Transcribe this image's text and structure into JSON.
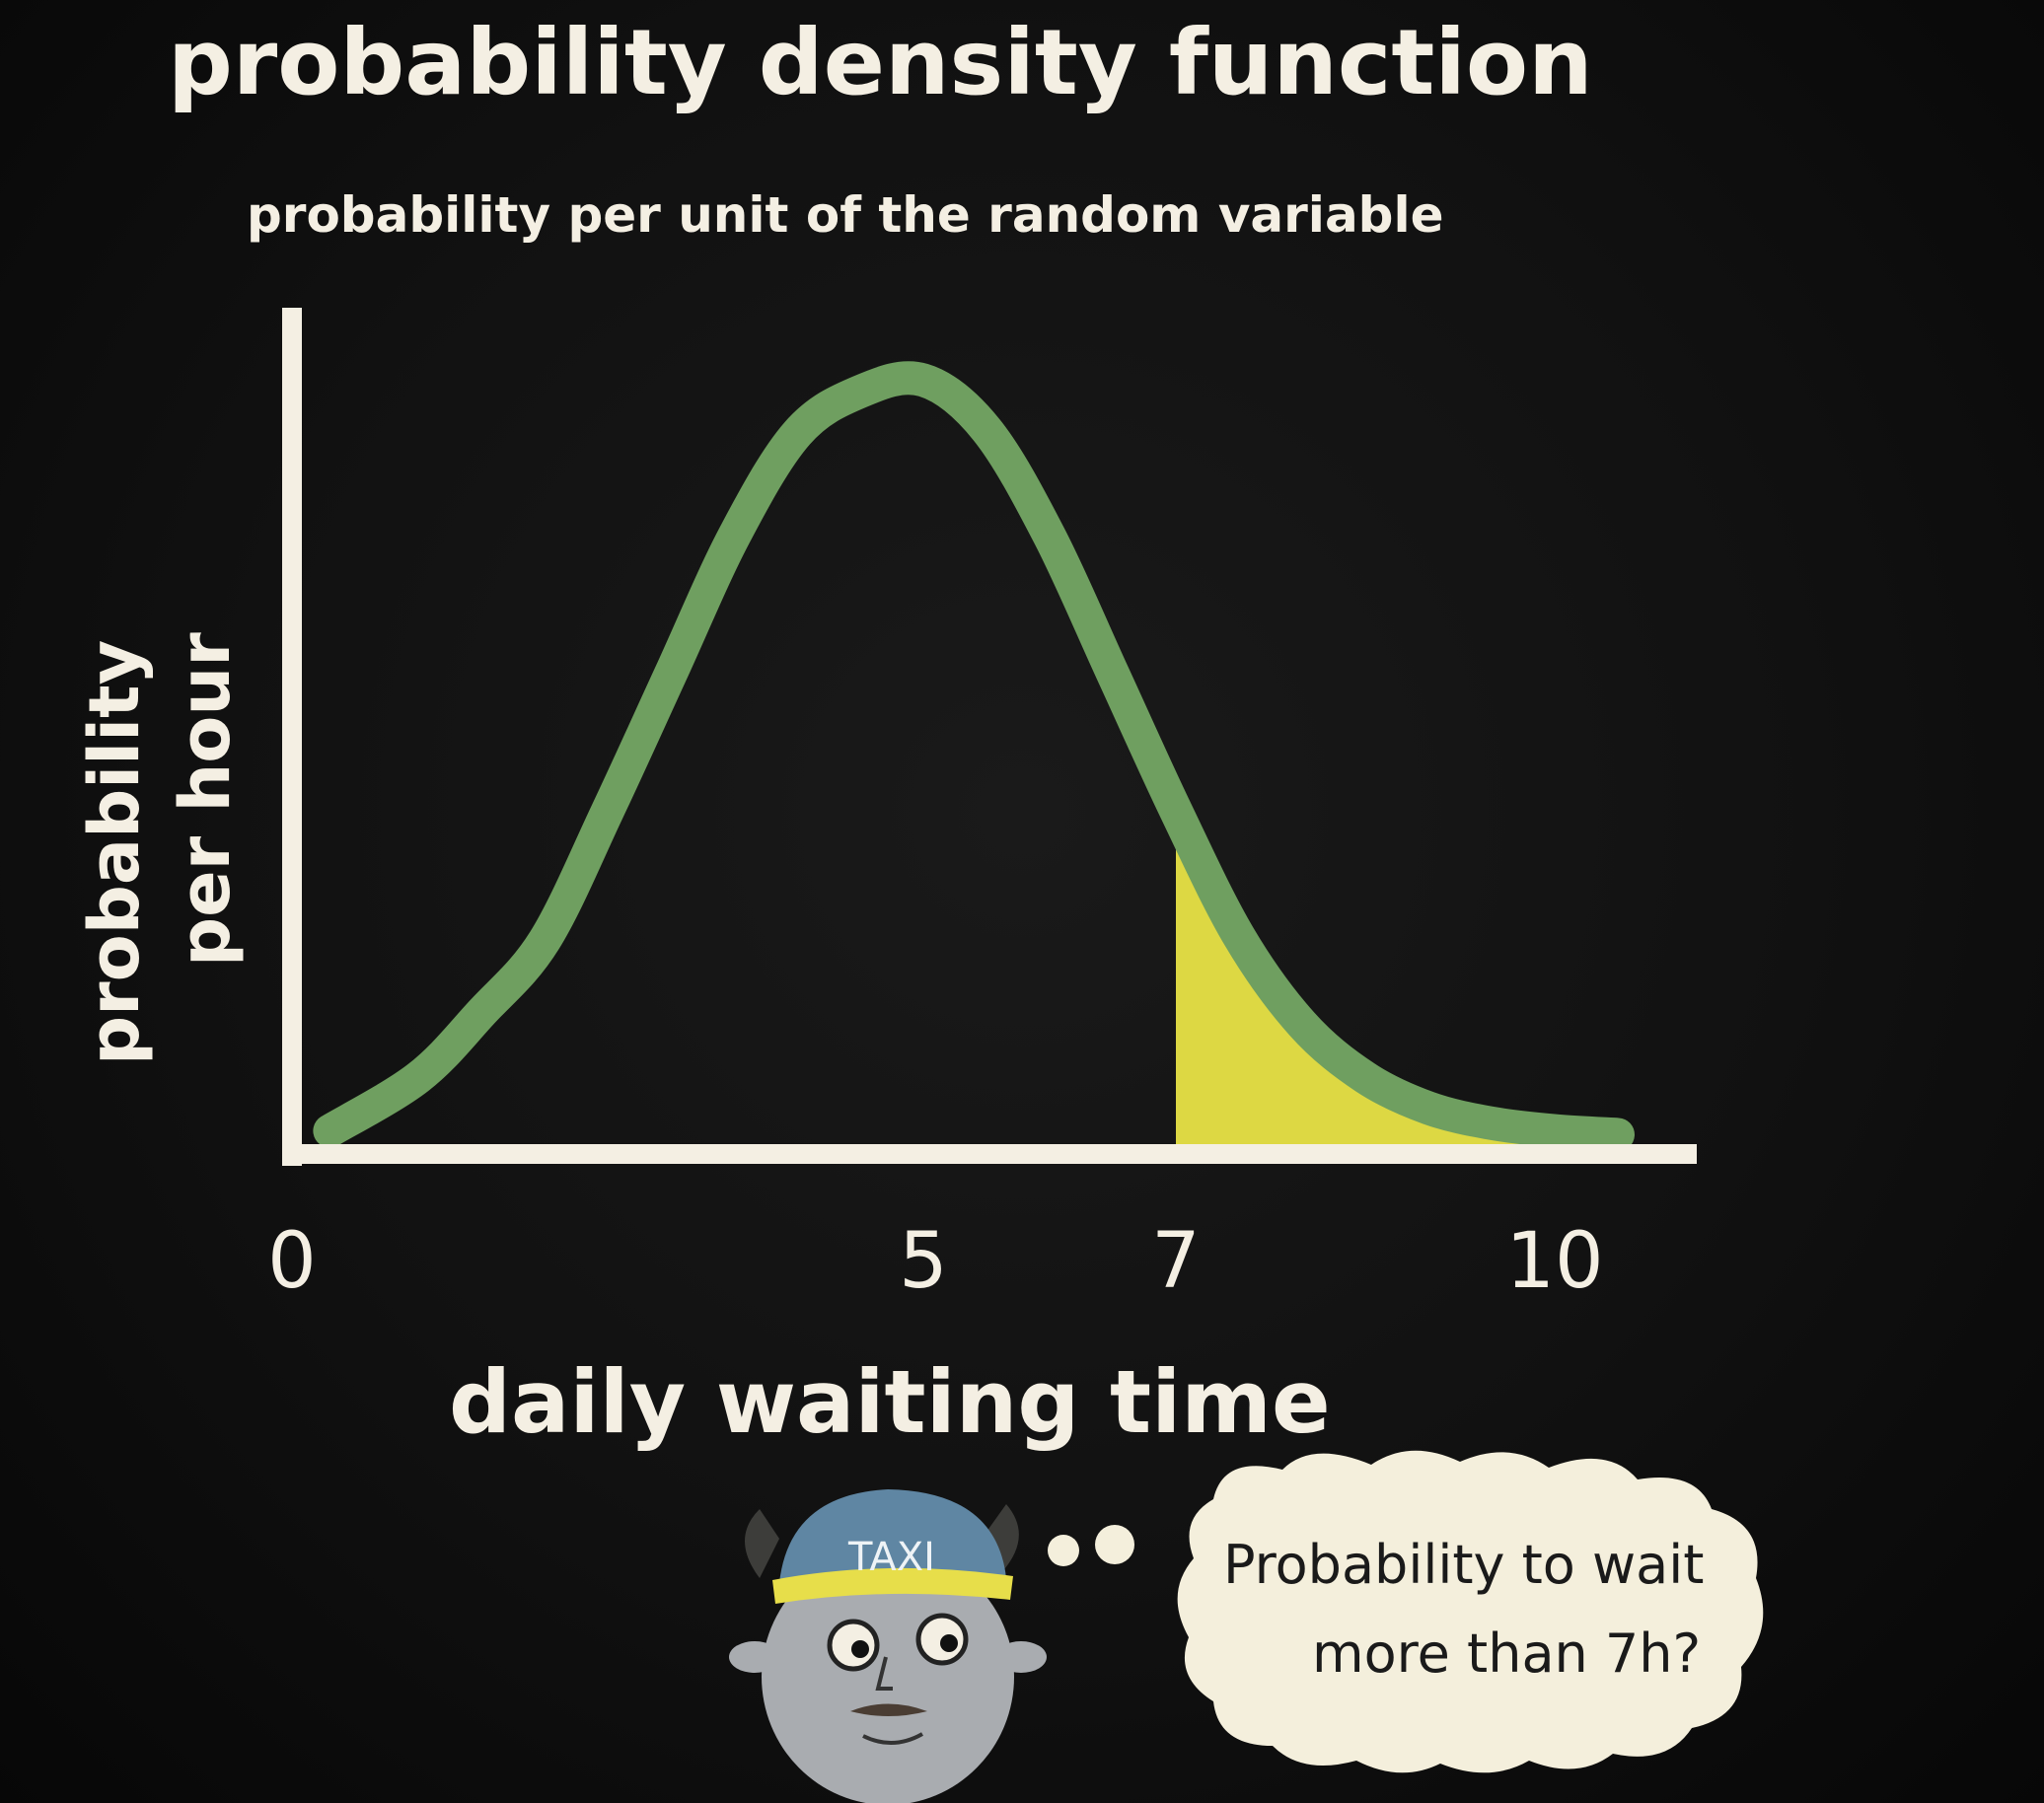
{
  "chart_data": {
    "type": "line",
    "title": "probability density function",
    "subtitle": "probability per unit of the random variable",
    "xlabel": "daily waiting time",
    "ylabel_lines": [
      "probability",
      "per hour"
    ],
    "x_ticks": [
      0,
      5,
      7,
      10
    ],
    "x_tick_labels": [
      "0",
      "5",
      "7",
      "10"
    ],
    "xlim": [
      0,
      10.8
    ],
    "ylim": [
      0,
      0.22
    ],
    "grid": false,
    "legend": "none",
    "series": [
      {
        "x": [
          0.3,
          1,
          1.5,
          2,
          2.5,
          3,
          3.5,
          4,
          4.5,
          5,
          5.5,
          6,
          6.5,
          7,
          7.5,
          8,
          8.5,
          9,
          9.5,
          10,
          10.5
        ],
        "y": [
          0.004,
          0.018,
          0.035,
          0.054,
          0.088,
          0.124,
          0.16,
          0.187,
          0.198,
          0.201,
          0.188,
          0.16,
          0.124,
          0.088,
          0.055,
          0.032,
          0.018,
          0.01,
          0.006,
          0.004,
          0.003
        ],
        "color": "#6f9f60"
      }
    ],
    "shaded_region": {
      "x_from": 7,
      "x_to": 10.5,
      "color": "#ddd843",
      "meaning": "P(wait > 7)"
    },
    "annotation": {
      "character_cap_label": "TAXI",
      "thought_lines": [
        "Probability to wait",
        "more than 7h?"
      ]
    }
  },
  "colors": {
    "background": "#111111",
    "axis": "#f4efe3",
    "curve": "#6f9f60",
    "shade": "#ddd843",
    "bubble": "#f4efdc",
    "cap": "#5f86a3",
    "cap_band": "#e7de4a",
    "face": "#a9acb0"
  }
}
